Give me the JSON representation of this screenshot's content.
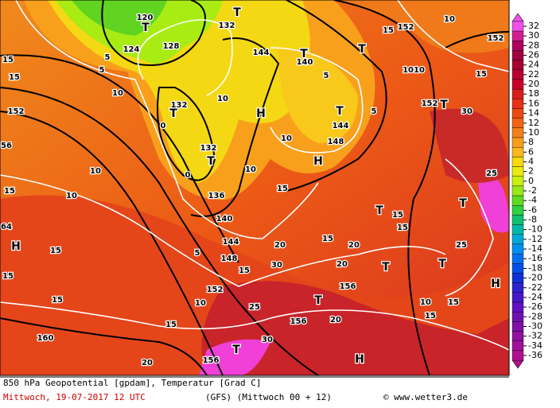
{
  "header": {
    "title": "850 hPa Geopotential [gpdam], Temperatur [Grad C]",
    "date": "Mittwoch, 19-07-2017  12 UTC",
    "model": "(GFS)  (Mittwoch 00 + 12)",
    "credit": "© www.wetter3.de"
  },
  "colorbar": {
    "ticks": [
      32,
      30,
      28,
      26,
      24,
      22,
      20,
      18,
      16,
      14,
      12,
      10,
      8,
      6,
      4,
      2,
      0,
      -2,
      -4,
      -6,
      -8,
      -10,
      -12,
      -14,
      -16,
      -18,
      -20,
      -22,
      -24,
      -26,
      -28,
      -30,
      -32,
      -34,
      -36
    ],
    "colors": [
      "#f050e8",
      "#d02090",
      "#b00060",
      "#a00040",
      "#a80030",
      "#b80030",
      "#c80028",
      "#d81e1e",
      "#e83018",
      "#ec4a14",
      "#f06414",
      "#f4801a",
      "#f89c1c",
      "#fcb81c",
      "#f8d810",
      "#e8ec10",
      "#c8f010",
      "#98e818",
      "#60dc20",
      "#30d040",
      "#10c070",
      "#00b8a8",
      "#00a8d8",
      "#0090f0",
      "#0070f0",
      "#0050e8",
      "#1030d8",
      "#3020d0",
      "#4818c8",
      "#6010c0",
      "#7010b0",
      "#8010a8",
      "#9010a0",
      "#a01098",
      "#b01090"
    ]
  },
  "map_labels": [
    "120",
    "T",
    "124",
    "128",
    "132",
    "T",
    "144",
    "140",
    "T",
    "T",
    "1010",
    "152",
    "152",
    "152",
    "T",
    "H",
    "T",
    "144",
    "148",
    "H",
    "T",
    "132",
    "T",
    "132",
    "136",
    "140",
    "144",
    "148",
    "152",
    "156",
    "156",
    "160",
    "156",
    "H",
    "H",
    "H",
    "T",
    "T",
    "T",
    "T",
    "T",
    "T",
    "10",
    "10",
    "15",
    "15",
    "15",
    "15",
    "15",
    "20",
    "25",
    "30",
    "20",
    "20",
    "20",
    "30",
    "15",
    "10",
    "10",
    "15",
    "15",
    "15",
    "10",
    "15",
    "30",
    "25",
    "25",
    "15",
    "15",
    "20",
    "15",
    "15",
    "10",
    "10",
    "5",
    "5",
    "10",
    "0",
    "0",
    "5",
    "64",
    "56",
    "152",
    "15",
    "15",
    "10",
    "5",
    "5"
  ]
}
